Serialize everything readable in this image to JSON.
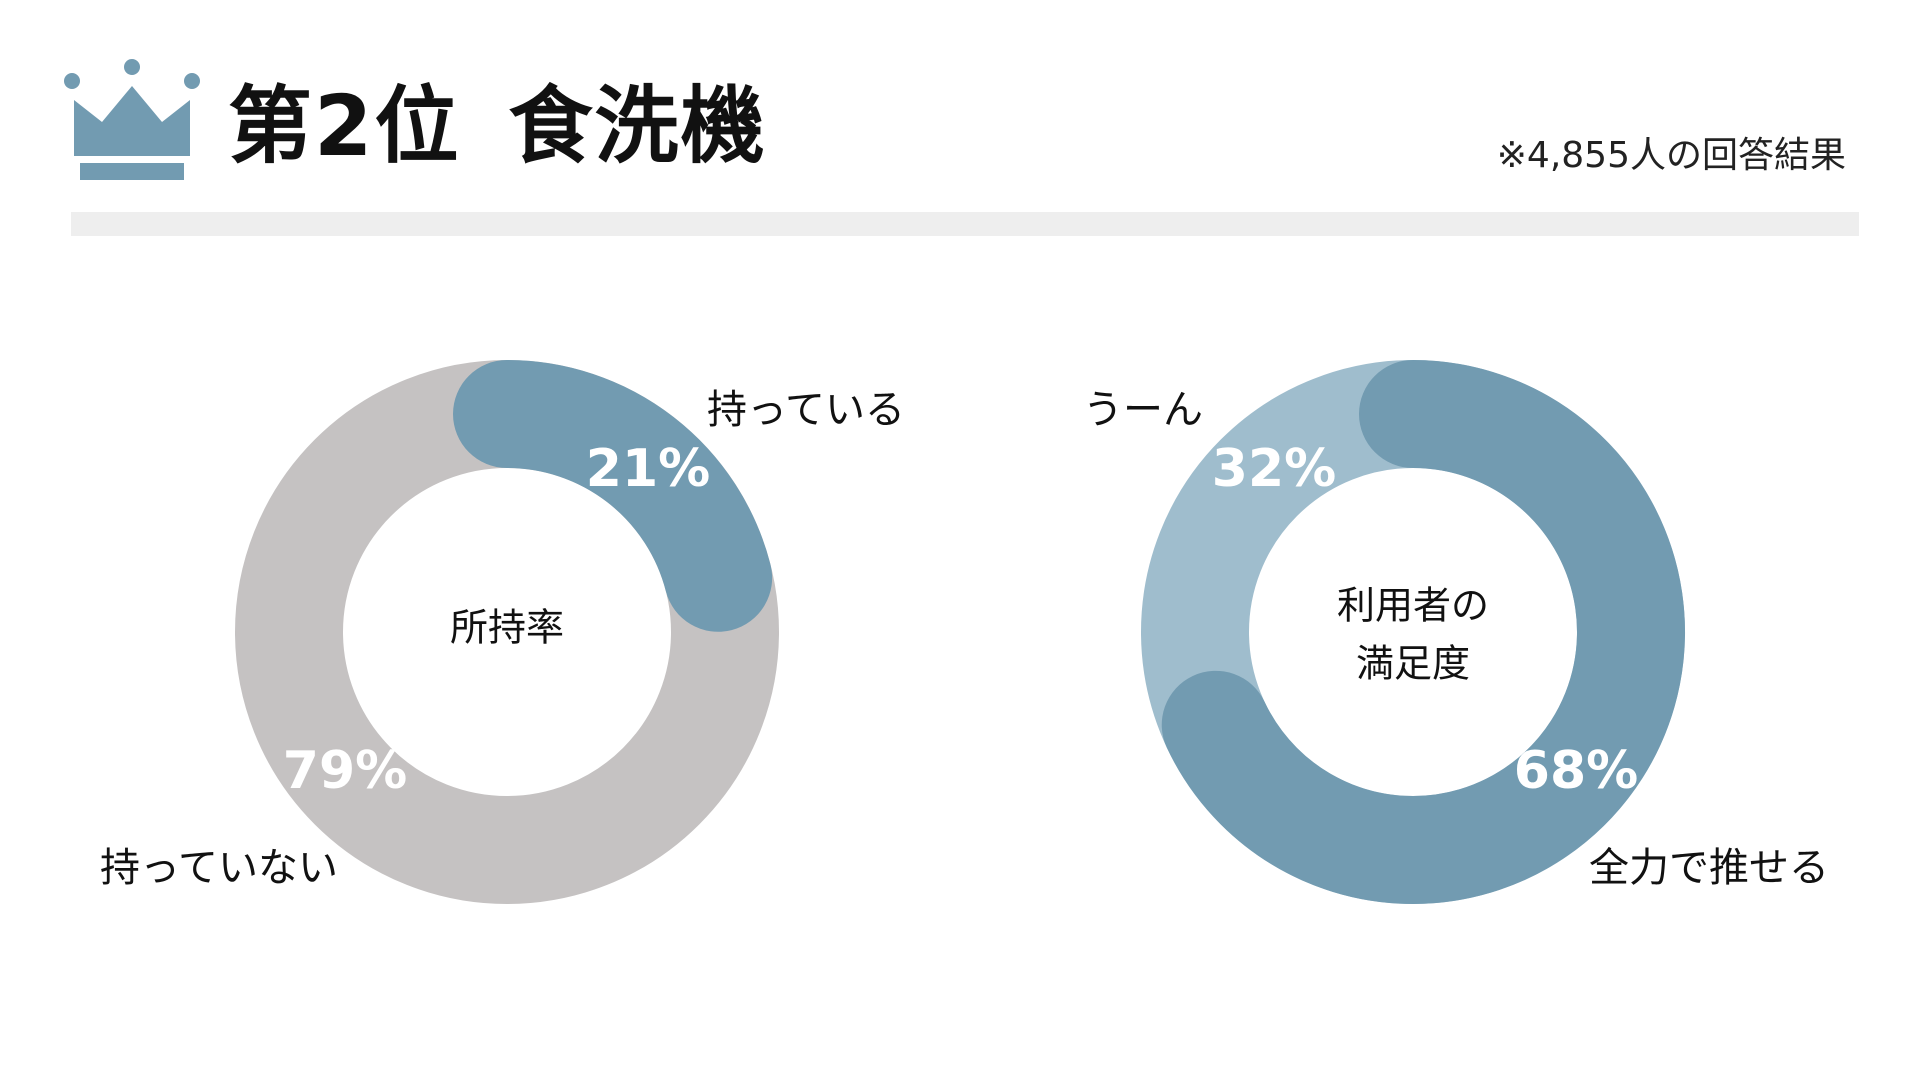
{
  "header": {
    "rank": "第2位",
    "item": "食洗機",
    "note": "※4,855人の回答結果",
    "crown_icon": "crown-icon"
  },
  "colors": {
    "accent": "#729bb1",
    "light_accent": "#9fbdcd",
    "gray": "#c5c2c2",
    "divider": "#eeeeee"
  },
  "chart_data": [
    {
      "type": "pie",
      "title": "所持率",
      "categories": [
        "持っている",
        "持っていない"
      ],
      "values": [
        21,
        79
      ],
      "value_labels": [
        "21%",
        "79%"
      ],
      "colors": [
        "#729bb1",
        "#c5c2c2"
      ],
      "legend": "none"
    },
    {
      "type": "pie",
      "title": "利用者の満足度",
      "title_lines": [
        "利用者の",
        "満足度"
      ],
      "categories": [
        "全力で推せる",
        "うーん"
      ],
      "values": [
        68,
        32
      ],
      "value_labels": [
        "68%",
        "32%"
      ],
      "colors": [
        "#729bb1",
        "#9fbdcd"
      ],
      "legend": "none"
    }
  ]
}
